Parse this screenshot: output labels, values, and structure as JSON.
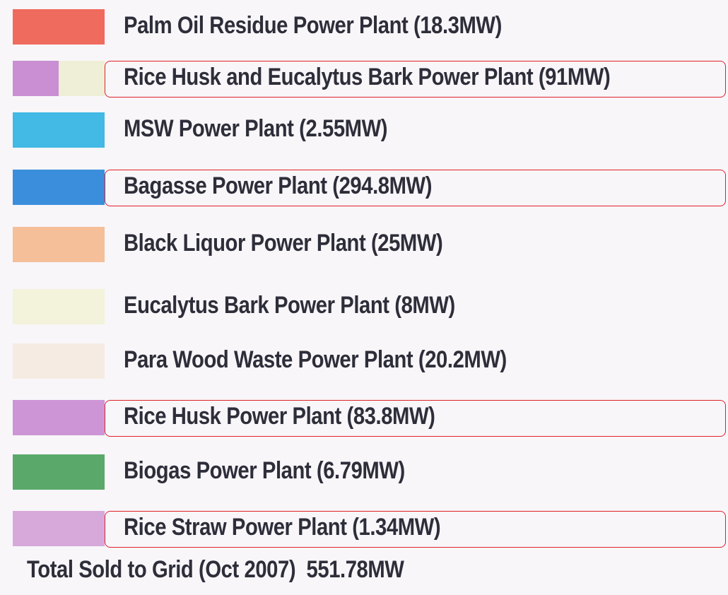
{
  "legend": {
    "items": [
      {
        "label": "Palm Oil Residue Power Plant (18.3MW)",
        "colors": [
          "#ef6b5d"
        ],
        "highlighted": false
      },
      {
        "label": "Rice Husk and Eucalytus Bark Power Plant (91MW)",
        "colors": [
          "#c98fd2",
          "#eeefd6"
        ],
        "highlighted": true
      },
      {
        "label": "MSW Power Plant (2.55MW)",
        "colors": [
          "#43b9e5"
        ],
        "highlighted": false
      },
      {
        "label": "Bagasse Power Plant (294.8MW)",
        "colors": [
          "#3b8edb"
        ],
        "highlighted": true
      },
      {
        "label": "Black Liquor Power Plant (25MW)",
        "colors": [
          "#f5bf99"
        ],
        "highlighted": false
      },
      {
        "label": "Eucalytus Bark Power Plant (8MW)",
        "colors": [
          "#f3f2da"
        ],
        "highlighted": false
      },
      {
        "label": "Para Wood Waste Power Plant (20.2MW)",
        "colors": [
          "#f6ebe2"
        ],
        "highlighted": false
      },
      {
        "label": "Rice Husk Power Plant (83.8MW)",
        "colors": [
          "#cd95d6"
        ],
        "highlighted": true
      },
      {
        "label": "Biogas Power Plant (6.79MW)",
        "colors": [
          "#5aa96b"
        ],
        "highlighted": false
      },
      {
        "label": "Rice Straw Power Plant (1.34MW)",
        "colors": [
          "#d6a9da"
        ],
        "highlighted": true
      }
    ],
    "total": "Total Sold to Grid (Oct 2007)  551.78MW"
  }
}
